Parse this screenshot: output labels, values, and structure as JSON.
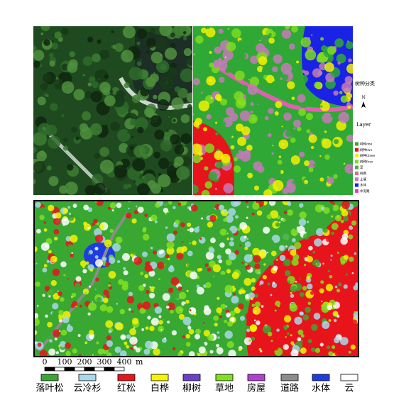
{
  "side_legend": {
    "title": "树种分类",
    "north": "N",
    "layer_title": "Layer",
    "items": [
      {
        "label": "树种one",
        "color": "#2fa836"
      },
      {
        "label": "树种two",
        "color": "#e8141c"
      },
      {
        "label": "树种three",
        "color": "#f5f000"
      },
      {
        "label": "树种four",
        "color": "#7ddc1f"
      },
      {
        "label": "草",
        "color": "#4caf3a"
      },
      {
        "label": "树路",
        "color": "#d46a9a"
      },
      {
        "label": "土壤",
        "color": "#c47ab8"
      },
      {
        "label": "水体",
        "color": "#1a22e6"
      },
      {
        "label": "水泥路",
        "color": "#e040c0"
      }
    ]
  },
  "scale_bar": {
    "labels": [
      "0",
      "100",
      "200",
      "300",
      "400"
    ],
    "unit": "m"
  },
  "legend": {
    "items": [
      {
        "label": "落叶松",
        "color": "#38a832"
      },
      {
        "label": "云冷杉",
        "color": "#a8d8ea"
      },
      {
        "label": "红松",
        "color": "#e8141c"
      },
      {
        "label": "白桦",
        "color": "#f5f500"
      },
      {
        "label": "柳树",
        "color": "#6a3fd0"
      },
      {
        "label": "草地",
        "color": "#80e020"
      },
      {
        "label": "房屋",
        "color": "#b040d0"
      },
      {
        "label": "道路",
        "color": "#8c8c8c"
      },
      {
        "label": "水体",
        "color": "#1e3ce0"
      },
      {
        "label": "云",
        "color": "#ffffff"
      }
    ]
  }
}
